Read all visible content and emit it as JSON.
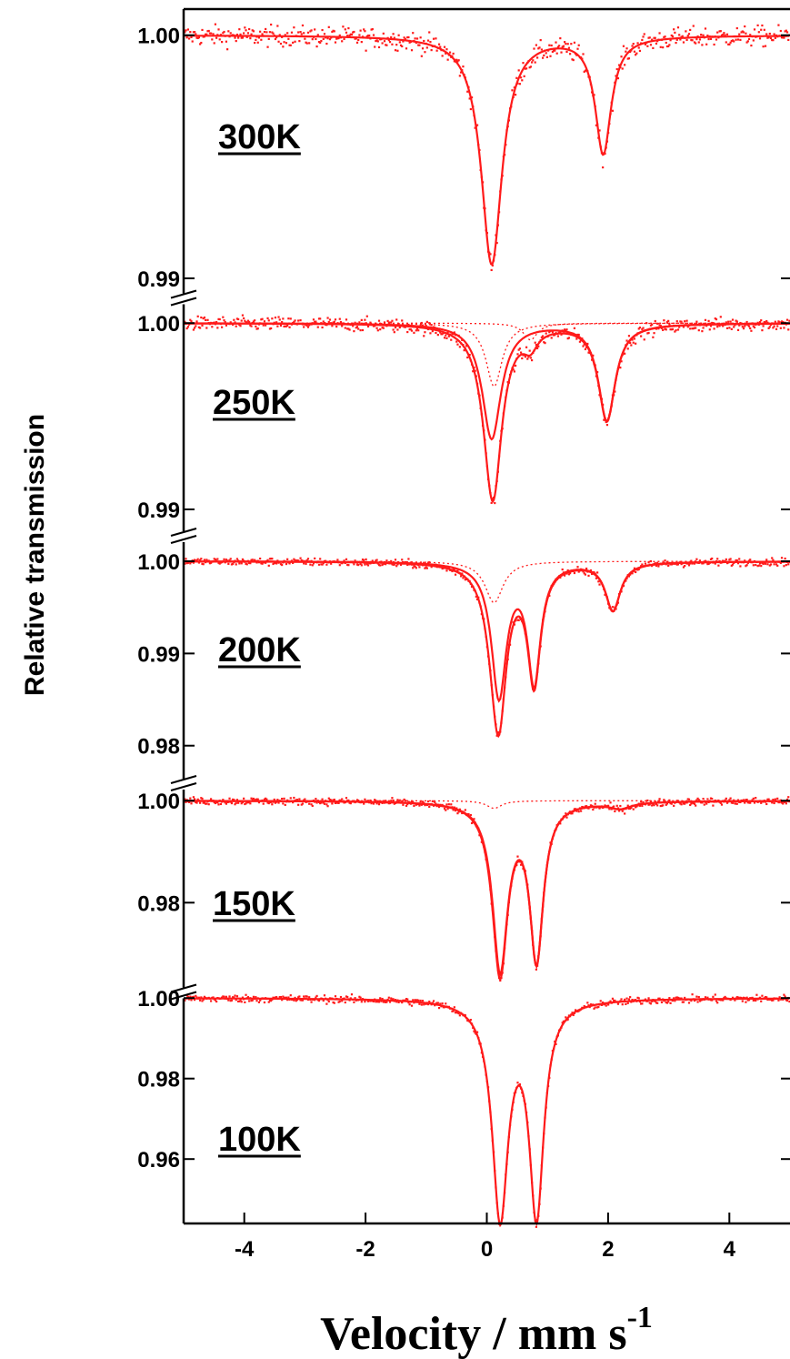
{
  "chart_data": {
    "type": "scatter",
    "xlabel": "Velocity / mm s",
    "xlabel_superscript": "-1",
    "ylabel": "Relative transmission",
    "xlim": [
      -5,
      5
    ],
    "x_ticks": [
      -4,
      -2,
      0,
      2,
      4
    ],
    "x_tick_labels": [
      "-4",
      "-2",
      "0",
      "2",
      "4"
    ],
    "series_color": "#ff1a1a",
    "axis_color": "#000000",
    "panels": [
      {
        "label": "300K",
        "ylim": [
          0.99,
          1.001
        ],
        "y_ticks": [
          {
            "value": 1.0,
            "label": "1.00"
          },
          {
            "value": 0.99,
            "label": "0.99"
          }
        ],
        "fit_components": [
          {
            "center": 0.08,
            "depth": 0.0094,
            "width": 0.42
          },
          {
            "center": 1.92,
            "depth": 0.0048,
            "width": 0.32
          }
        ],
        "noise": 0.0004
      },
      {
        "label": "250K",
        "ylim": [
          0.99,
          1.0005
        ],
        "y_ticks": [
          {
            "value": 1.0,
            "label": "1.00"
          },
          {
            "value": 0.99,
            "label": "0.99"
          }
        ],
        "fit_components": [
          {
            "center": 0.08,
            "depth": 0.0062,
            "width": 0.38
          },
          {
            "center": 1.98,
            "depth": 0.0052,
            "width": 0.34
          },
          {
            "center": 0.12,
            "depth": 0.0034,
            "width": 0.32,
            "dashed_only": true
          },
          {
            "center": 0.72,
            "depth": 0.0009,
            "width": 0.28,
            "dashed_only": true
          }
        ],
        "noise": 0.00035
      },
      {
        "label": "200K",
        "ylim": [
          0.978,
          1.0003
        ],
        "y_ticks": [
          {
            "value": 1.0,
            "label": "1.00"
          },
          {
            "value": 0.99,
            "label": "0.99"
          },
          {
            "value": 0.98,
            "label": "0.98"
          }
        ],
        "fit_components": [
          {
            "center": 0.2,
            "depth": 0.0145,
            "width": 0.3
          },
          {
            "center": 0.78,
            "depth": 0.0128,
            "width": 0.26
          },
          {
            "center": 2.08,
            "depth": 0.0052,
            "width": 0.3
          },
          {
            "center": 0.12,
            "depth": 0.0045,
            "width": 0.36,
            "dashed_only": true
          }
        ],
        "noise": 0.0004
      },
      {
        "label": "150K",
        "ylim": [
          0.964,
          1.0004
        ],
        "y_ticks": [
          {
            "value": 1.0,
            "label": "1.00"
          },
          {
            "value": 0.98,
            "label": "0.98"
          }
        ],
        "fit_components": [
          {
            "center": 0.22,
            "depth": 0.0325,
            "width": 0.3
          },
          {
            "center": 0.82,
            "depth": 0.0305,
            "width": 0.27
          },
          {
            "center": 2.2,
            "depth": 0.0012,
            "width": 0.45
          },
          {
            "center": 0.12,
            "depth": 0.0015,
            "width": 0.3,
            "dashed_only": true
          }
        ],
        "noise": 0.0007
      },
      {
        "label": "100K",
        "ylim": [
          0.944,
          1.0005
        ],
        "y_ticks": [
          {
            "value": 1.0,
            "label": "1.00"
          },
          {
            "value": 0.98,
            "label": "0.98"
          },
          {
            "value": 0.96,
            "label": "0.96"
          }
        ],
        "fit_components": [
          {
            "center": 0.22,
            "depth": 0.0535,
            "width": 0.32
          },
          {
            "center": 0.82,
            "depth": 0.0525,
            "width": 0.29
          }
        ],
        "noise": 0.0009
      }
    ]
  }
}
